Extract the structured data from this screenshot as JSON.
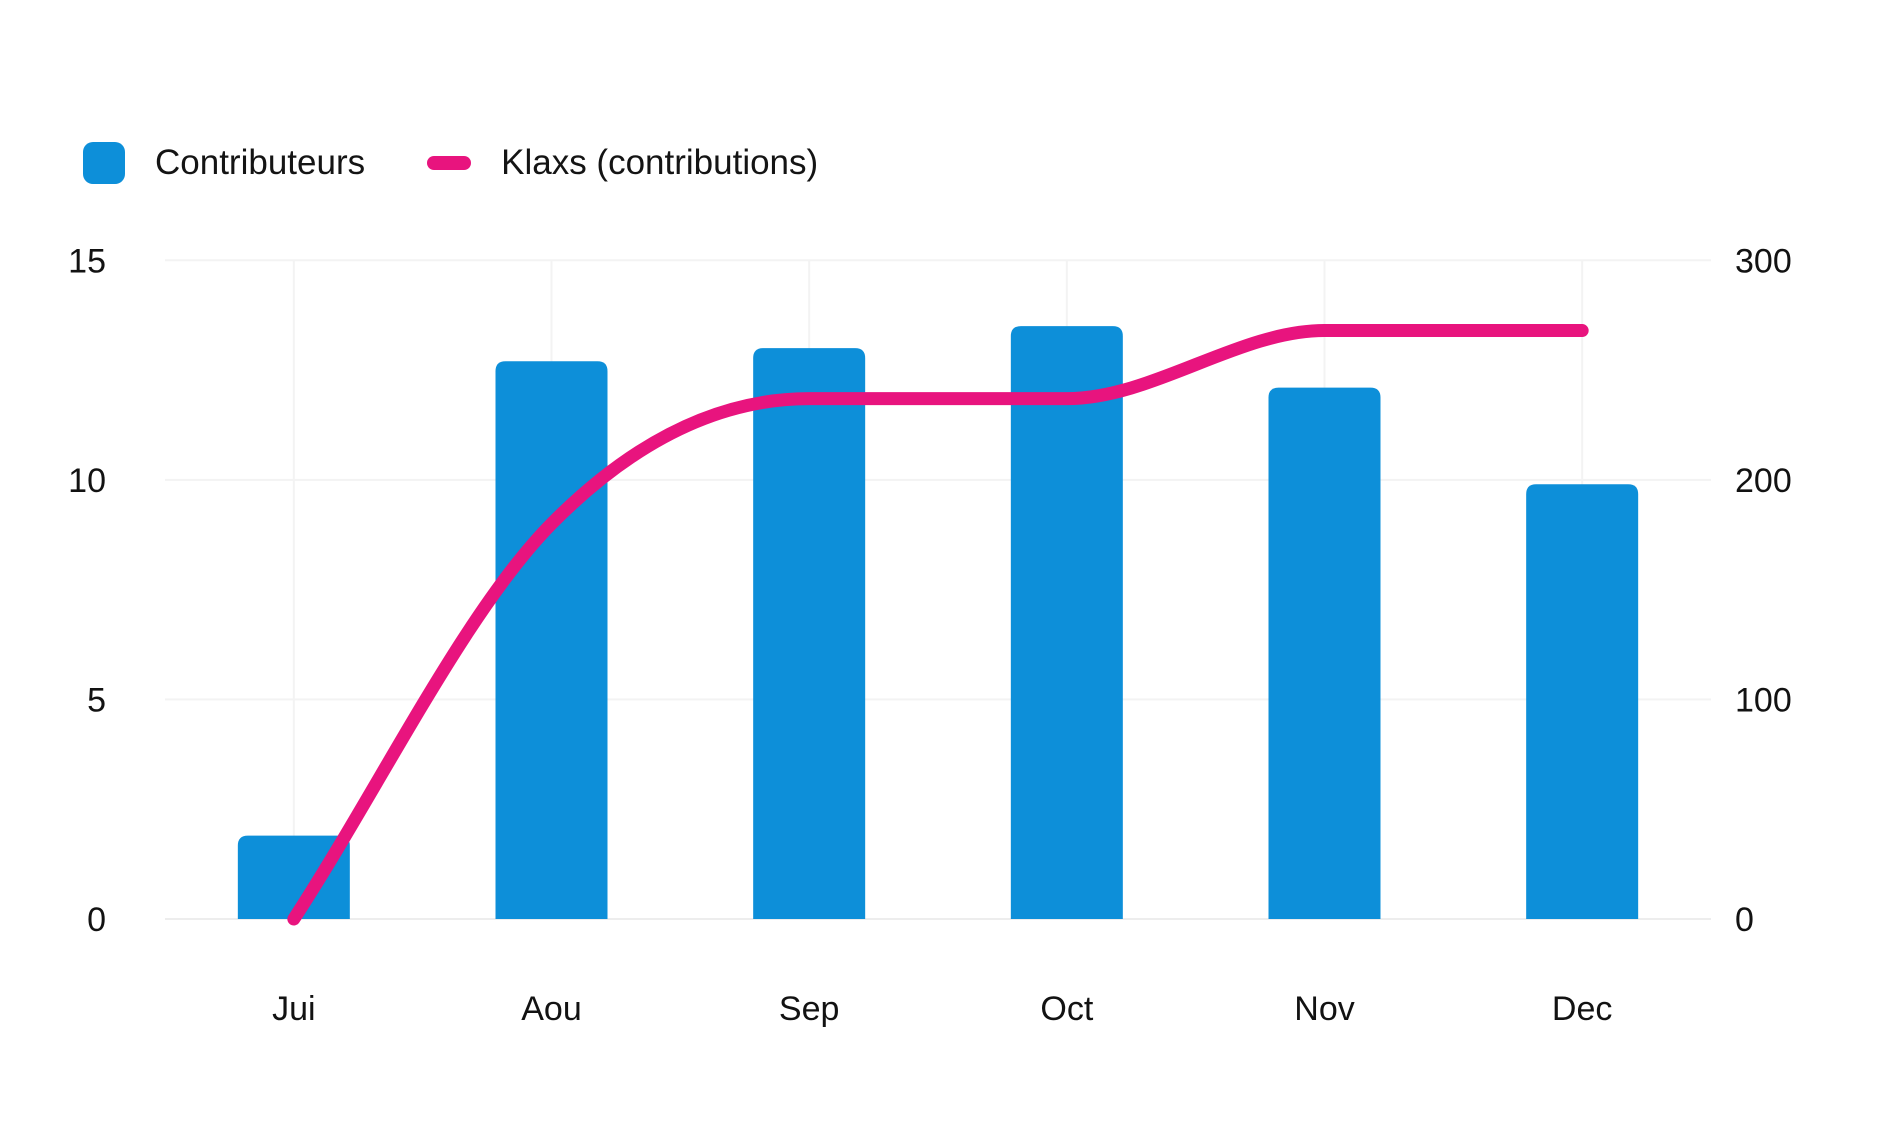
{
  "legend": {
    "items": [
      {
        "label": "Contributeurs",
        "marker": "bar",
        "color": "#0d8fd9"
      },
      {
        "label": "Klaxs (contributions)",
        "marker": "line",
        "color": "#e8147e"
      }
    ]
  },
  "chart_data": {
    "type": "combo-bar-line",
    "title": "",
    "categories": [
      "Jui",
      "Aou",
      "Sep",
      "Oct",
      "Nov",
      "Dec"
    ],
    "series": [
      {
        "name": "Contributeurs",
        "type": "bar",
        "axis": "left",
        "color": "#0d8fd9",
        "values": [
          1.9,
          12.7,
          13,
          13.5,
          12.1,
          9.9
        ]
      },
      {
        "name": "Klaxs (contributions)",
        "type": "line",
        "axis": "right",
        "color": "#e8147e",
        "interpolation": "monotone",
        "values": [
          0,
          180,
          237,
          237,
          268,
          268
        ]
      }
    ],
    "axes": {
      "left": {
        "ticks": [
          0,
          5,
          10,
          15
        ],
        "range": [
          0,
          15
        ]
      },
      "right": {
        "ticks": [
          0,
          100,
          200,
          300
        ],
        "range": [
          0,
          300
        ]
      }
    },
    "grid": {
      "horizontal": true,
      "vertical": true
    },
    "legend_position": "top-left",
    "colors": {
      "grid": "#f3f3f3",
      "baseline": "#ededed",
      "text": "#121212",
      "background": "#ffffff"
    }
  }
}
